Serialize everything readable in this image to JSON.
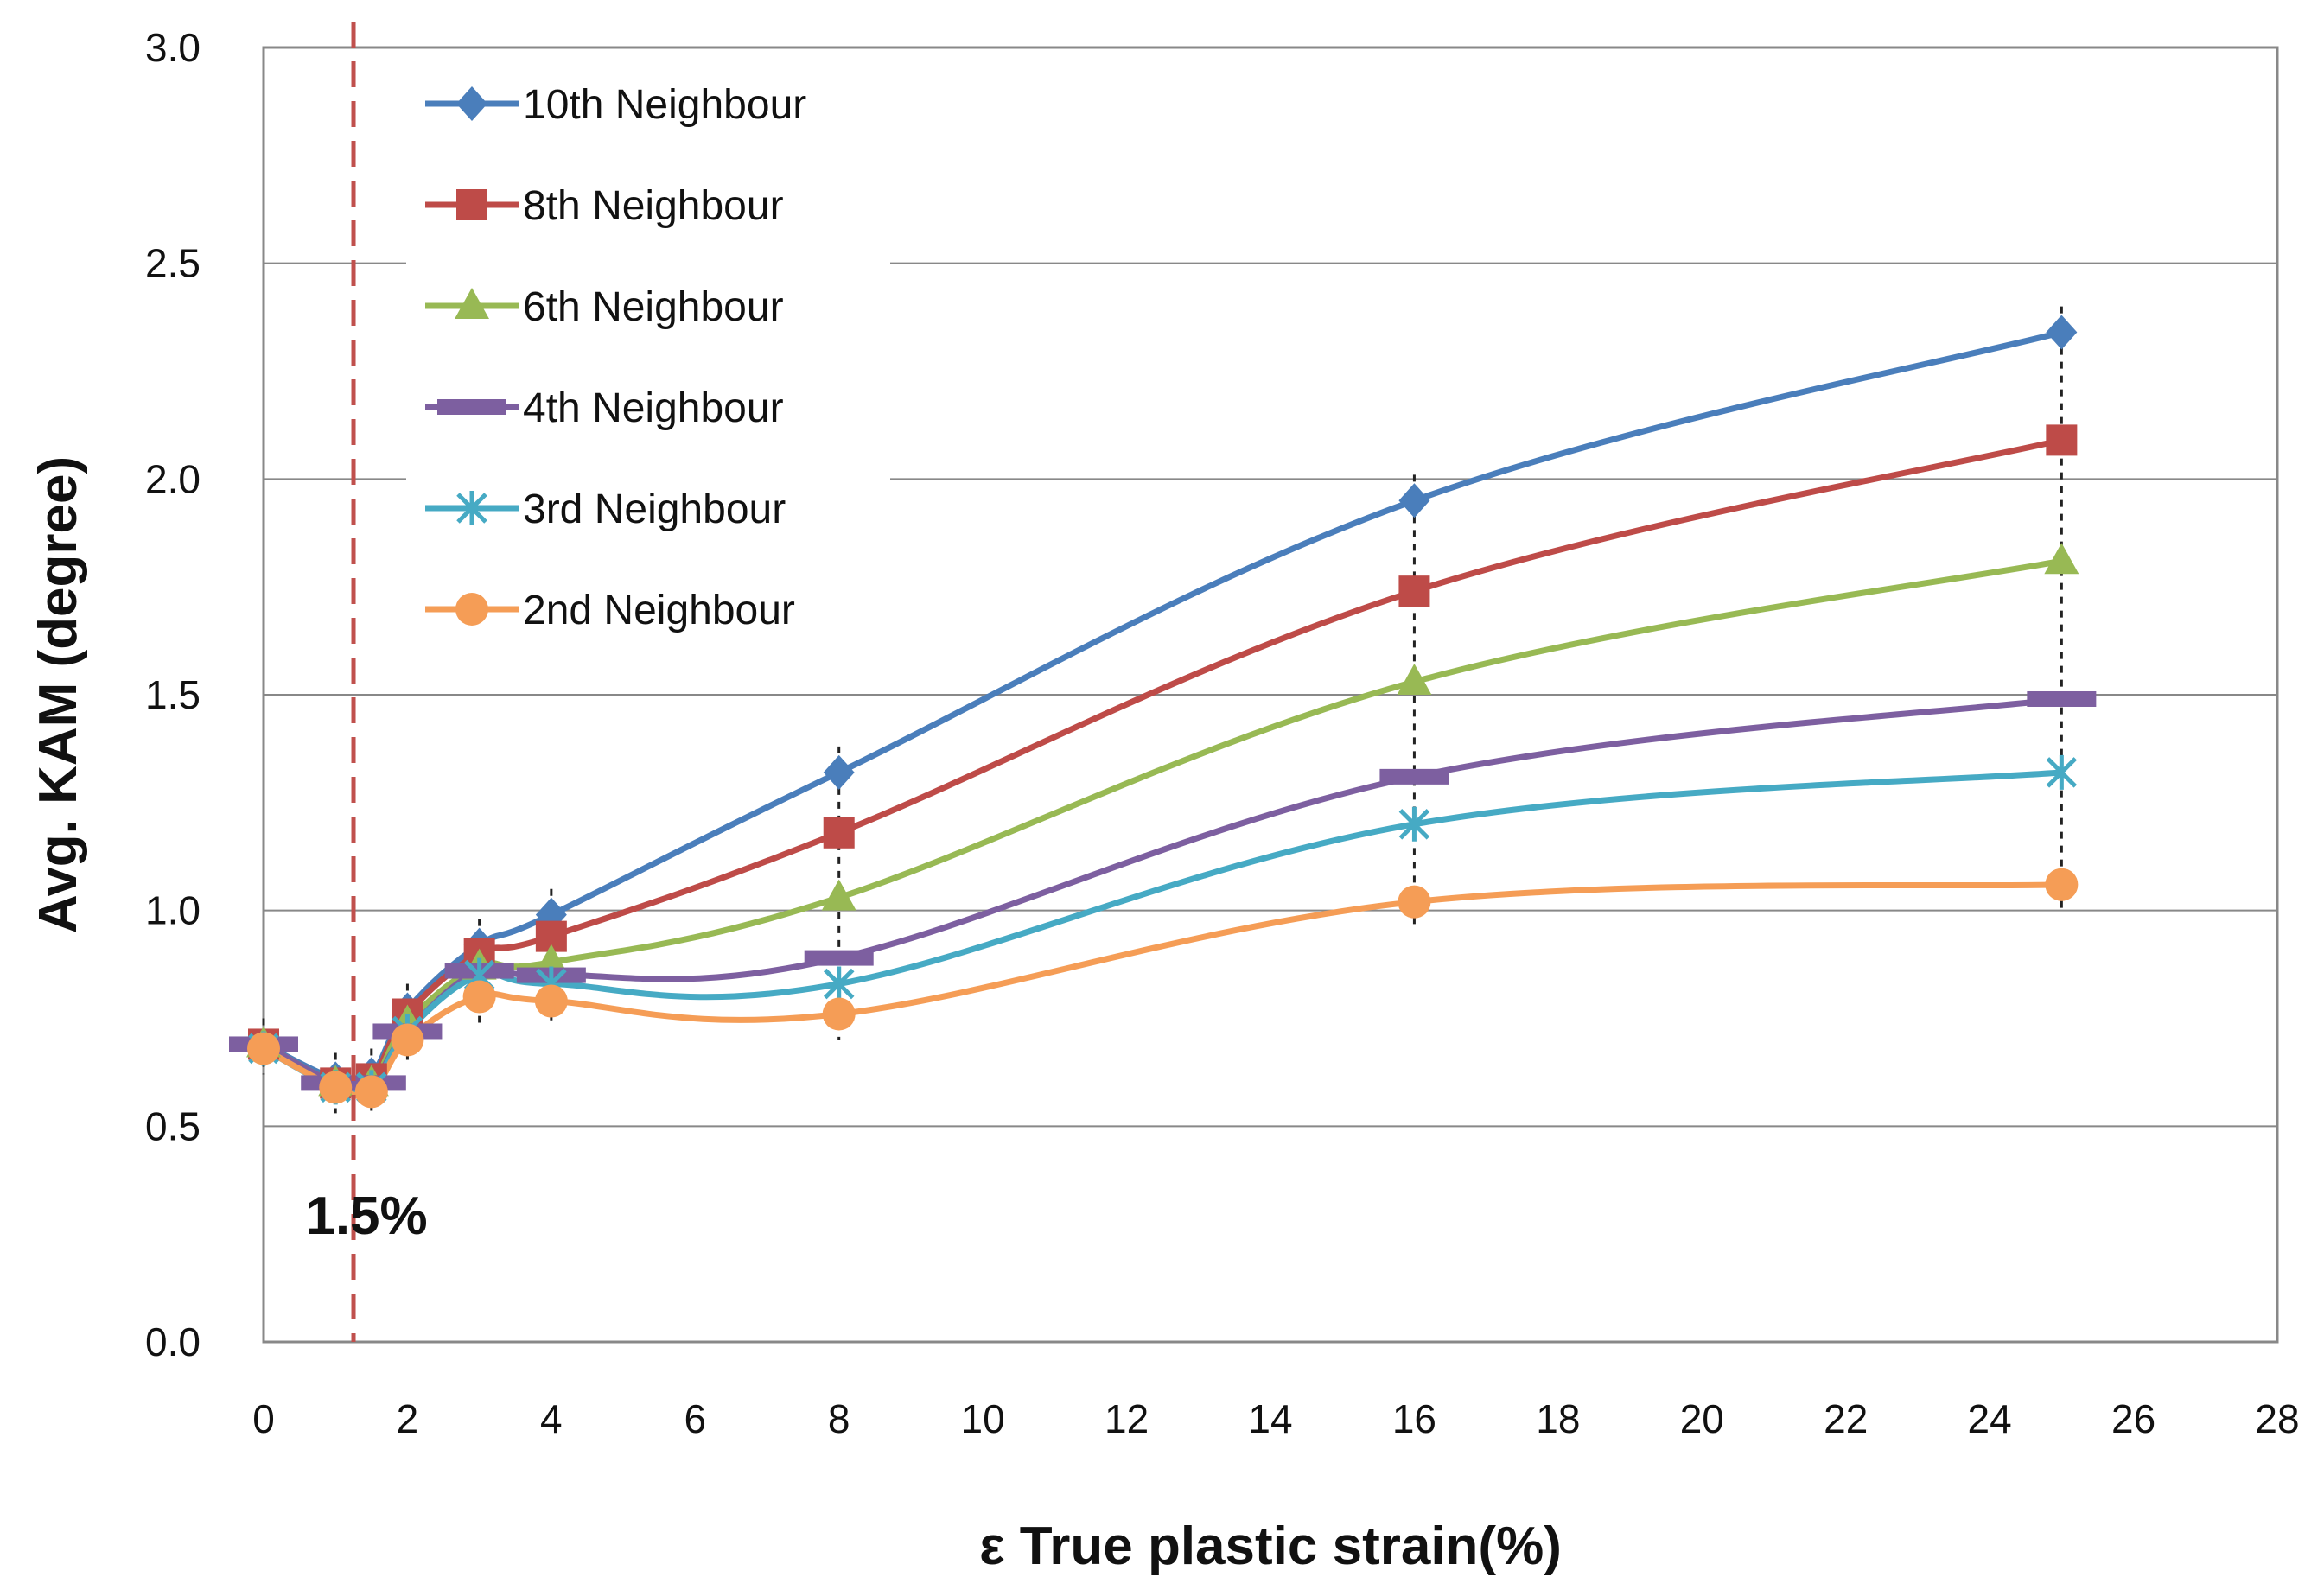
{
  "chart_data": {
    "type": "line",
    "title": "",
    "xlabel": "ε True plastic strain(%)",
    "ylabel": "Avg. KAM (degree)",
    "xlim": [
      0,
      28
    ],
    "ylim": [
      0,
      3.0
    ],
    "x_ticks": [
      0,
      2,
      4,
      6,
      8,
      10,
      12,
      14,
      16,
      18,
      20,
      22,
      24,
      26,
      28
    ],
    "y_ticks": [
      0.0,
      0.5,
      1.0,
      1.5,
      2.0,
      2.5,
      3.0
    ],
    "y_tick_labels": [
      "0.0",
      "0.5",
      "1.0",
      "1.5",
      "2.0",
      "2.5",
      "3.0"
    ],
    "grid": "horizontal",
    "legend_position": "top-left",
    "x": [
      0,
      1,
      1.5,
      2,
      3,
      4,
      8,
      16,
      25
    ],
    "series": [
      {
        "name": "10th Neighbour",
        "color": "#4a7ebb",
        "marker": "diamond",
        "values": [
          0.69,
          0.61,
          0.62,
          0.77,
          0.92,
          0.99,
          1.32,
          1.95,
          2.34
        ]
      },
      {
        "name": "8th Neighbour",
        "color": "#be4b48",
        "marker": "square",
        "values": [
          0.69,
          0.6,
          0.61,
          0.76,
          0.9,
          0.94,
          1.18,
          1.74,
          2.09
        ]
      },
      {
        "name": "6th Neighbour",
        "color": "#98b954",
        "marker": "triangle",
        "values": [
          0.69,
          0.6,
          0.6,
          0.74,
          0.87,
          0.88,
          1.03,
          1.53,
          1.81
        ]
      },
      {
        "name": "4th Neighbour",
        "color": "#7d5fa0",
        "marker": "dash",
        "values": [
          0.69,
          0.6,
          0.6,
          0.72,
          0.86,
          0.85,
          0.89,
          1.31,
          1.49
        ]
      },
      {
        "name": "3rd Neighbour",
        "color": "#46aac4",
        "marker": "star",
        "values": [
          0.68,
          0.59,
          0.59,
          0.72,
          0.85,
          0.83,
          0.83,
          1.2,
          1.32
        ]
      },
      {
        "name": "2nd Neighbour",
        "color": "#f59d56",
        "marker": "circle",
        "values": [
          0.68,
          0.59,
          0.58,
          0.7,
          0.8,
          0.79,
          0.76,
          1.02,
          1.06
        ]
      }
    ],
    "error_bar_x": [
      0,
      1,
      1.5,
      2,
      3,
      4,
      8,
      16,
      25
    ],
    "error_bar_half_width": 0.06,
    "annotations": [
      {
        "text": "1.5%",
        "x": 1.25,
        "y": 0.25
      }
    ],
    "reference_line": {
      "x": 1.25,
      "style": "dashed",
      "color": "#c0504d"
    }
  }
}
